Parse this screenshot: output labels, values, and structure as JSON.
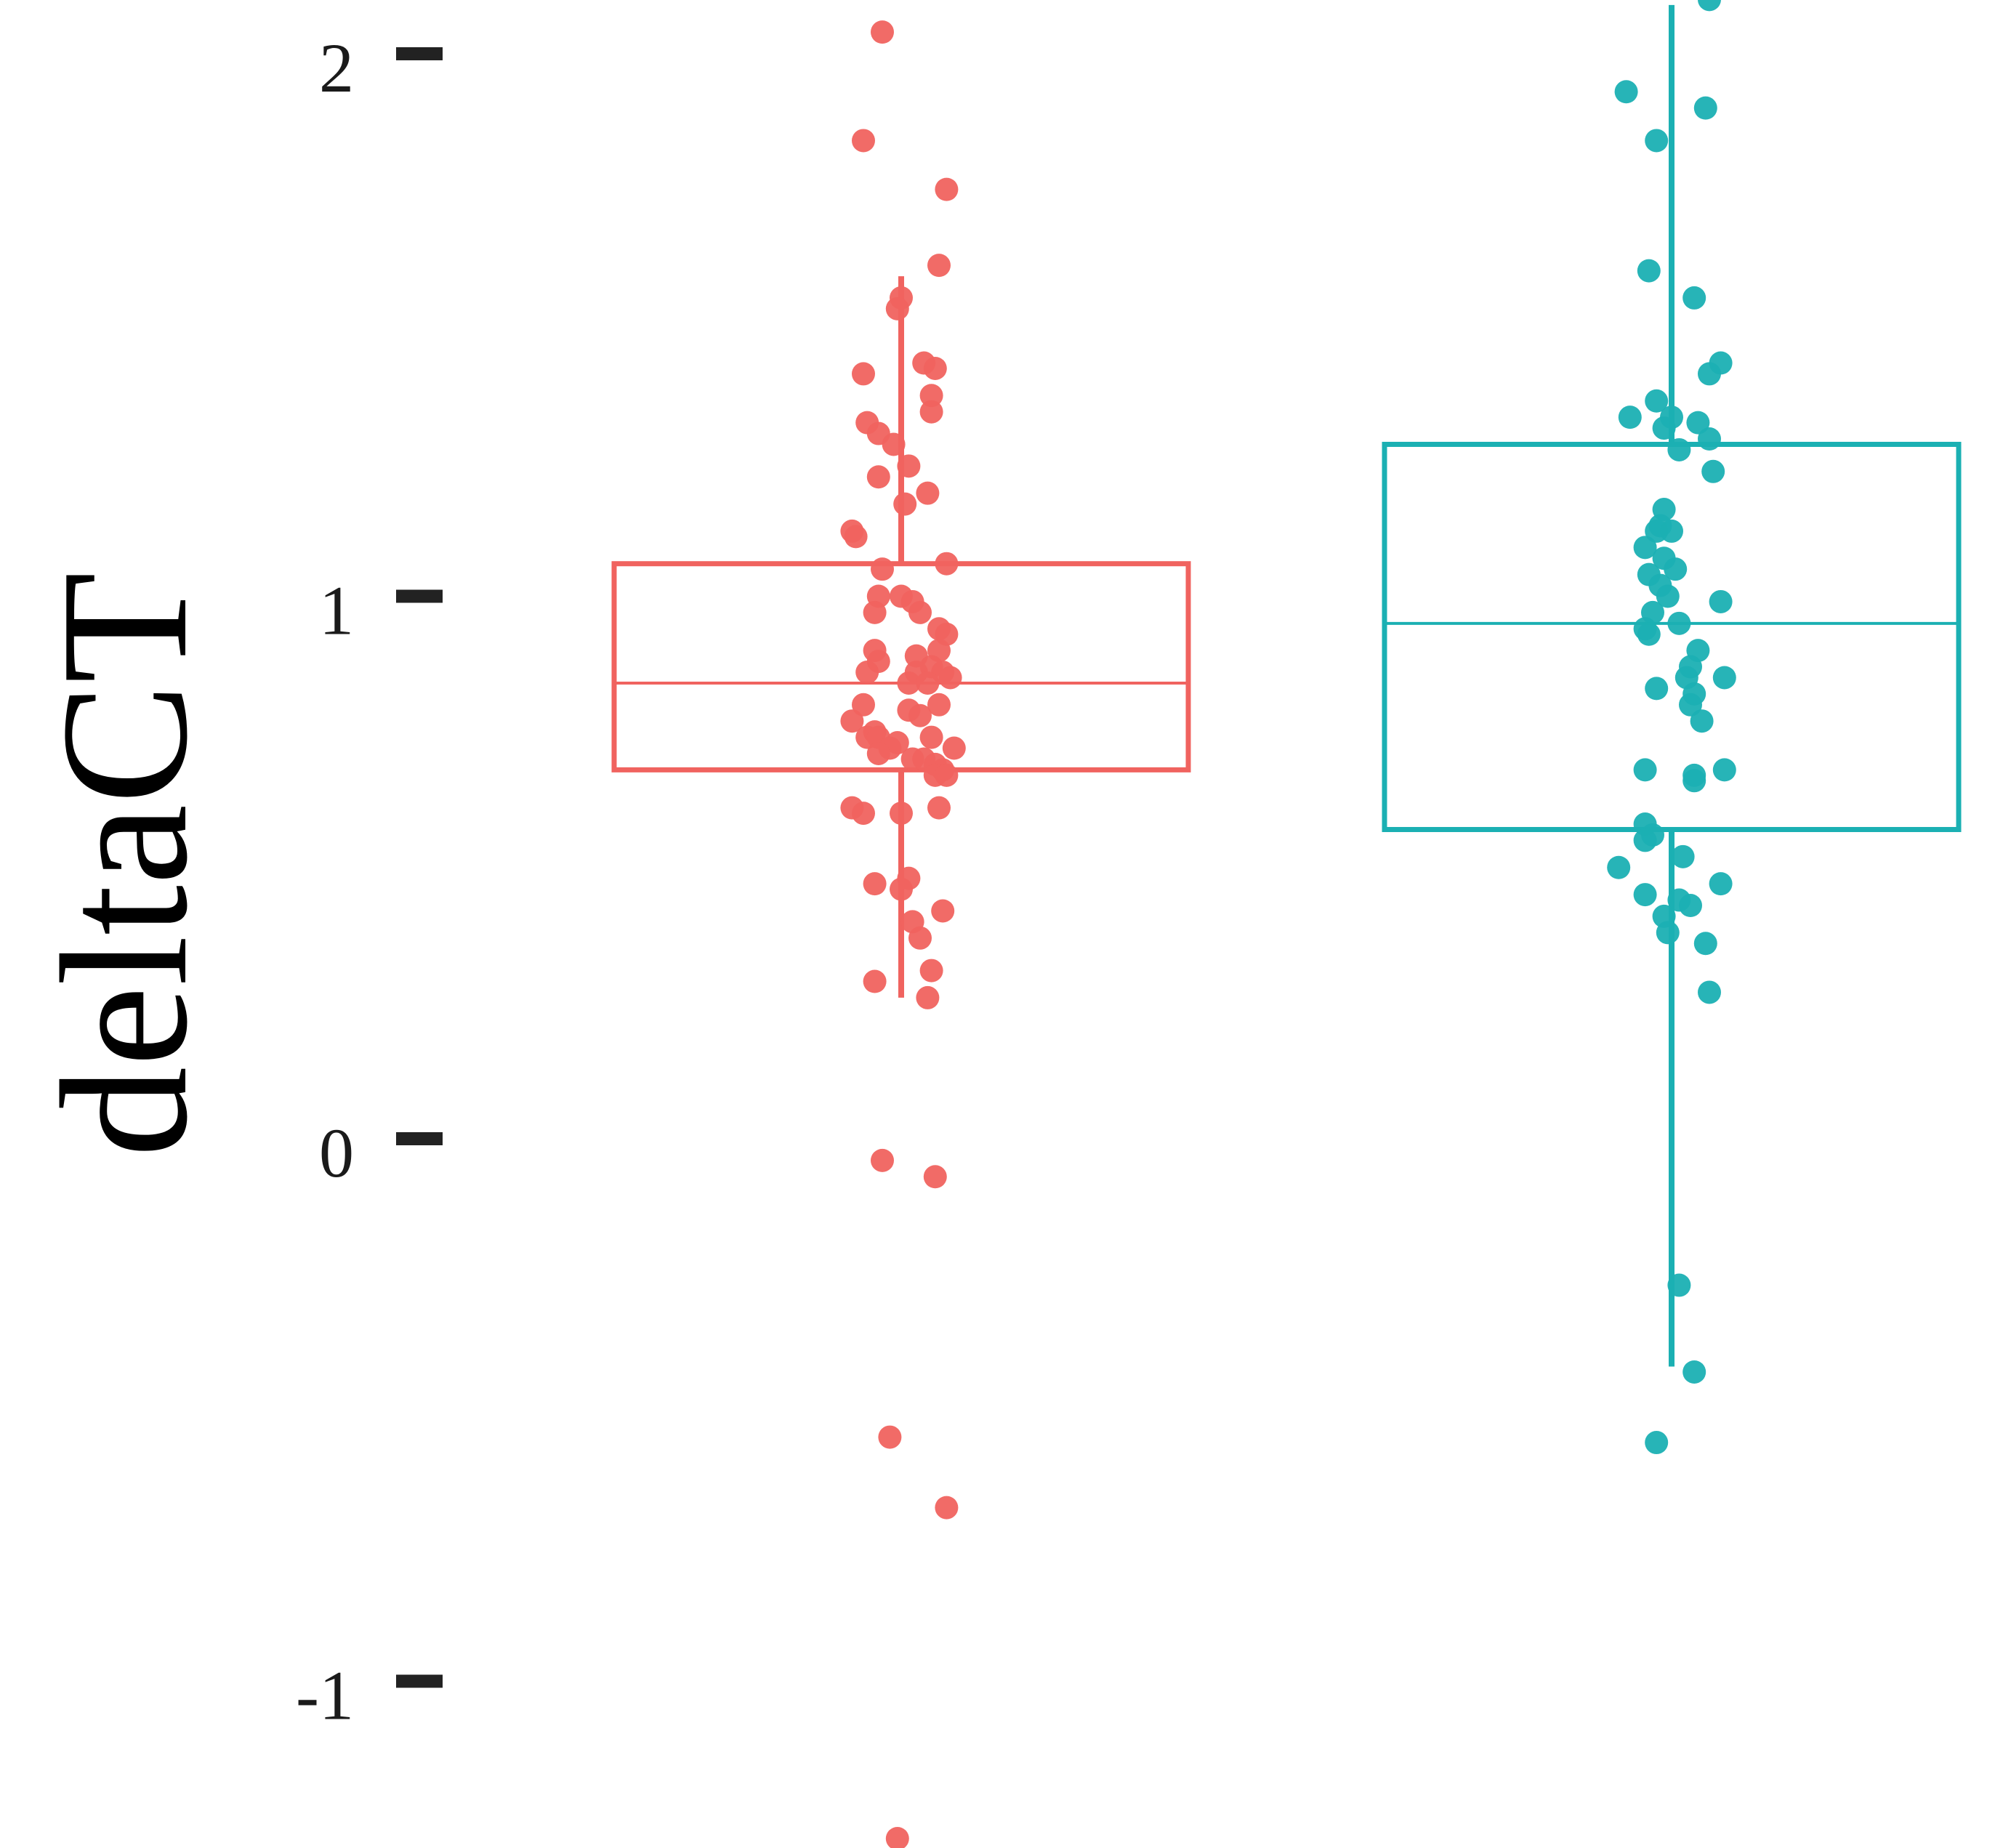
{
  "chart_data": {
    "type": "box",
    "ylabel": "deltaCT",
    "xlabel": "",
    "ylim": [
      -1.3,
      2.1
    ],
    "y_ticks": [
      "2",
      "1",
      "0",
      "-1"
    ],
    "y_tick_values": [
      2,
      1,
      0,
      -1
    ],
    "grid": false,
    "legend": "none",
    "series": [
      {
        "color": "#F0635F",
        "whisker_low": 0.26,
        "q1": 0.68,
        "median": 0.84,
        "q3": 1.06,
        "whisker_high": 1.59,
        "points": [
          {
            "x": -0.05,
            "y": 2.04
          },
          {
            "x": -0.1,
            "y": 1.84
          },
          {
            "x": 0.12,
            "y": 1.75
          },
          {
            "x": 0.1,
            "y": 1.61
          },
          {
            "x": 0.0,
            "y": 1.55
          },
          {
            "x": -0.01,
            "y": 1.53
          },
          {
            "x": -0.1,
            "y": 1.41
          },
          {
            "x": 0.06,
            "y": 1.43
          },
          {
            "x": 0.09,
            "y": 1.42
          },
          {
            "x": 0.08,
            "y": 1.37
          },
          {
            "x": 0.08,
            "y": 1.34
          },
          {
            "x": -0.09,
            "y": 1.32
          },
          {
            "x": -0.06,
            "y": 1.3
          },
          {
            "x": -0.02,
            "y": 1.28
          },
          {
            "x": 0.02,
            "y": 1.24
          },
          {
            "x": -0.06,
            "y": 1.22
          },
          {
            "x": 0.07,
            "y": 1.19
          },
          {
            "x": 0.01,
            "y": 1.17
          },
          {
            "x": -0.13,
            "y": 1.12
          },
          {
            "x": -0.12,
            "y": 1.11
          },
          {
            "x": -0.05,
            "y": 1.05
          },
          {
            "x": 0.12,
            "y": 1.06
          },
          {
            "x": -0.06,
            "y": 1.0
          },
          {
            "x": 0.0,
            "y": 1.0
          },
          {
            "x": 0.03,
            "y": 0.99
          },
          {
            "x": 0.05,
            "y": 0.97
          },
          {
            "x": -0.07,
            "y": 0.97
          },
          {
            "x": 0.1,
            "y": 0.94
          },
          {
            "x": 0.12,
            "y": 0.93
          },
          {
            "x": -0.07,
            "y": 0.9
          },
          {
            "x": 0.1,
            "y": 0.9
          },
          {
            "x": 0.04,
            "y": 0.89
          },
          {
            "x": -0.06,
            "y": 0.88
          },
          {
            "x": 0.08,
            "y": 0.87
          },
          {
            "x": -0.09,
            "y": 0.86
          },
          {
            "x": 0.04,
            "y": 0.86
          },
          {
            "x": 0.11,
            "y": 0.86
          },
          {
            "x": 0.13,
            "y": 0.85
          },
          {
            "x": 0.02,
            "y": 0.84
          },
          {
            "x": 0.07,
            "y": 0.84
          },
          {
            "x": -0.1,
            "y": 0.8
          },
          {
            "x": 0.1,
            "y": 0.8
          },
          {
            "x": 0.02,
            "y": 0.79
          },
          {
            "x": 0.05,
            "y": 0.78
          },
          {
            "x": -0.13,
            "y": 0.77
          },
          {
            "x": -0.07,
            "y": 0.75
          },
          {
            "x": -0.09,
            "y": 0.74
          },
          {
            "x": -0.06,
            "y": 0.74
          },
          {
            "x": 0.08,
            "y": 0.74
          },
          {
            "x": -0.01,
            "y": 0.73
          },
          {
            "x": 0.14,
            "y": 0.72
          },
          {
            "x": -0.03,
            "y": 0.72
          },
          {
            "x": -0.06,
            "y": 0.71
          },
          {
            "x": 0.03,
            "y": 0.7
          },
          {
            "x": 0.06,
            "y": 0.7
          },
          {
            "x": 0.09,
            "y": 0.69
          },
          {
            "x": 0.11,
            "y": 0.68
          },
          {
            "x": 0.09,
            "y": 0.67
          },
          {
            "x": 0.12,
            "y": 0.67
          },
          {
            "x": -0.13,
            "y": 0.61
          },
          {
            "x": -0.1,
            "y": 0.6
          },
          {
            "x": 0.0,
            "y": 0.6
          },
          {
            "x": 0.1,
            "y": 0.61
          },
          {
            "x": -0.07,
            "y": 0.47
          },
          {
            "x": 0.0,
            "y": 0.46
          },
          {
            "x": 0.02,
            "y": 0.48
          },
          {
            "x": 0.11,
            "y": 0.42
          },
          {
            "x": 0.03,
            "y": 0.4
          },
          {
            "x": 0.05,
            "y": 0.37
          },
          {
            "x": 0.08,
            "y": 0.31
          },
          {
            "x": -0.07,
            "y": 0.29
          },
          {
            "x": 0.07,
            "y": 0.26
          },
          {
            "x": -0.05,
            "y": -0.04
          },
          {
            "x": 0.09,
            "y": -0.07
          },
          {
            "x": -0.03,
            "y": -0.55
          },
          {
            "x": 0.12,
            "y": -0.68
          },
          {
            "x": -0.01,
            "y": -1.29
          }
        ]
      },
      {
        "color": "#1BB0B3",
        "whisker_low": -0.42,
        "q1": 0.57,
        "median": 0.95,
        "q3": 1.28,
        "whisker_high": 2.09,
        "points": [
          {
            "x": 0.1,
            "y": 2.1
          },
          {
            "x": -0.12,
            "y": 1.93
          },
          {
            "x": 0.09,
            "y": 1.9
          },
          {
            "x": -0.04,
            "y": 1.84
          },
          {
            "x": -0.06,
            "y": 1.6
          },
          {
            "x": 0.06,
            "y": 1.55
          },
          {
            "x": 0.13,
            "y": 1.43
          },
          {
            "x": 0.1,
            "y": 1.41
          },
          {
            "x": -0.04,
            "y": 1.36
          },
          {
            "x": -0.11,
            "y": 1.33
          },
          {
            "x": 0.0,
            "y": 1.33
          },
          {
            "x": -0.02,
            "y": 1.31
          },
          {
            "x": 0.07,
            "y": 1.32
          },
          {
            "x": 0.1,
            "y": 1.29
          },
          {
            "x": 0.02,
            "y": 1.27
          },
          {
            "x": 0.11,
            "y": 1.23
          },
          {
            "x": -0.02,
            "y": 1.16
          },
          {
            "x": -0.03,
            "y": 1.13
          },
          {
            "x": 0.0,
            "y": 1.12
          },
          {
            "x": -0.04,
            "y": 1.12
          },
          {
            "x": -0.02,
            "y": 1.07
          },
          {
            "x": -0.07,
            "y": 1.09
          },
          {
            "x": 0.01,
            "y": 1.05
          },
          {
            "x": -0.06,
            "y": 1.04
          },
          {
            "x": -0.03,
            "y": 1.02
          },
          {
            "x": -0.01,
            "y": 1.0
          },
          {
            "x": 0.13,
            "y": 0.99
          },
          {
            "x": -0.05,
            "y": 0.97
          },
          {
            "x": 0.02,
            "y": 0.95
          },
          {
            "x": -0.07,
            "y": 0.94
          },
          {
            "x": -0.06,
            "y": 0.93
          },
          {
            "x": 0.07,
            "y": 0.9
          },
          {
            "x": 0.05,
            "y": 0.87
          },
          {
            "x": 0.14,
            "y": 0.85
          },
          {
            "x": 0.04,
            "y": 0.85
          },
          {
            "x": -0.04,
            "y": 0.83
          },
          {
            "x": 0.06,
            "y": 0.82
          },
          {
            "x": 0.05,
            "y": 0.8
          },
          {
            "x": 0.08,
            "y": 0.77
          },
          {
            "x": -0.07,
            "y": 0.68
          },
          {
            "x": 0.06,
            "y": 0.67
          },
          {
            "x": 0.06,
            "y": 0.66
          },
          {
            "x": 0.14,
            "y": 0.68
          },
          {
            "x": -0.07,
            "y": 0.58
          },
          {
            "x": -0.05,
            "y": 0.56
          },
          {
            "x": -0.07,
            "y": 0.55
          },
          {
            "x": 0.03,
            "y": 0.52
          },
          {
            "x": -0.14,
            "y": 0.5
          },
          {
            "x": 0.13,
            "y": 0.47
          },
          {
            "x": -0.07,
            "y": 0.45
          },
          {
            "x": 0.02,
            "y": 0.44
          },
          {
            "x": 0.05,
            "y": 0.43
          },
          {
            "x": -0.02,
            "y": 0.41
          },
          {
            "x": -0.01,
            "y": 0.38
          },
          {
            "x": 0.09,
            "y": 0.36
          },
          {
            "x": 0.1,
            "y": 0.27
          },
          {
            "x": 0.02,
            "y": -0.27
          },
          {
            "x": 0.06,
            "y": -0.43
          },
          {
            "x": -0.04,
            "y": -0.56
          }
        ]
      }
    ]
  }
}
